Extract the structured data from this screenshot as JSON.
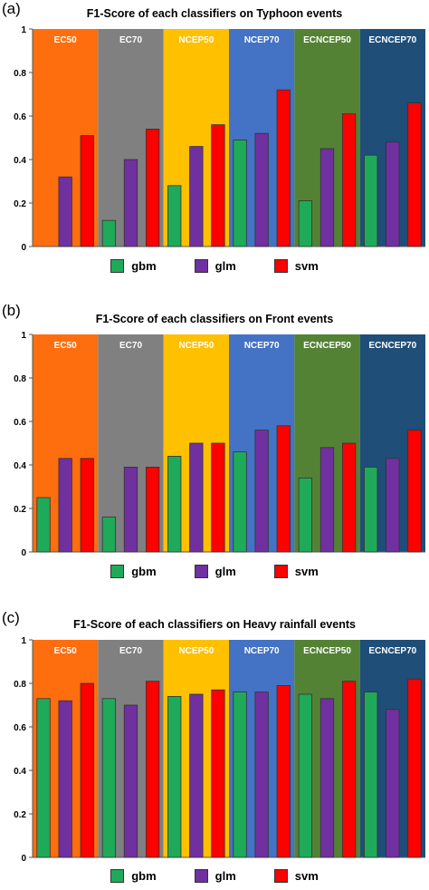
{
  "colors": {
    "gbm": "#1faa5a",
    "glm": "#7030a0",
    "svm": "#ff0000",
    "bands": [
      "#ff6e0e",
      "#808080",
      "#ffc000",
      "#4472c4",
      "#548235",
      "#1f4e79"
    ]
  },
  "chart_data": [
    {
      "type": "bar",
      "panel": "(a)",
      "title": "F1-Score of each classifiers on Typhoon events",
      "categories": [
        "EC50",
        "EC70",
        "NCEP50",
        "NCEP70",
        "ECNCEP50",
        "ECNCEP70"
      ],
      "ylim": [
        0,
        1
      ],
      "yticks": [
        "0",
        "0.2",
        "0.4",
        "0.6",
        "0.8",
        "1"
      ],
      "grid": false,
      "legend_placement": "bottom-center",
      "series": [
        {
          "name": "gbm",
          "values": [
            0.0,
            0.12,
            0.28,
            0.49,
            0.21,
            0.42
          ]
        },
        {
          "name": "glm",
          "values": [
            0.32,
            0.4,
            0.46,
            0.52,
            0.45,
            0.48
          ]
        },
        {
          "name": "svm",
          "values": [
            0.51,
            0.54,
            0.56,
            0.72,
            0.61,
            0.66
          ]
        }
      ]
    },
    {
      "type": "bar",
      "panel": "(b)",
      "title": "F1-Score of each classifiers on Front events",
      "categories": [
        "EC50",
        "EC70",
        "NCEP50",
        "NCEP70",
        "ECNCEP50",
        "ECNCEP70"
      ],
      "ylim": [
        0,
        1
      ],
      "yticks": [
        "0",
        "0.2",
        "0.4",
        "0.6",
        "0.8",
        "1"
      ],
      "grid": false,
      "legend_placement": "bottom-center",
      "series": [
        {
          "name": "gbm",
          "values": [
            0.25,
            0.16,
            0.44,
            0.46,
            0.34,
            0.39
          ]
        },
        {
          "name": "glm",
          "values": [
            0.43,
            0.39,
            0.5,
            0.56,
            0.48,
            0.43
          ]
        },
        {
          "name": "svm",
          "values": [
            0.43,
            0.39,
            0.5,
            0.58,
            0.5,
            0.56
          ]
        }
      ]
    },
    {
      "type": "bar",
      "panel": "(c)",
      "title": "F1-Score of each classifiers on Heavy rainfall events",
      "categories": [
        "EC50",
        "EC70",
        "NCEP50",
        "NCEP70",
        "ECNCEP50",
        "ECNCEP70"
      ],
      "ylim": [
        0,
        1
      ],
      "yticks": [
        "0",
        "0.2",
        "0.4",
        "0.6",
        "0.8",
        "1"
      ],
      "grid": false,
      "legend_placement": "bottom-center",
      "series": [
        {
          "name": "gbm",
          "values": [
            0.73,
            0.73,
            0.74,
            0.76,
            0.75,
            0.76
          ]
        },
        {
          "name": "glm",
          "values": [
            0.72,
            0.7,
            0.75,
            0.76,
            0.73,
            0.68
          ]
        },
        {
          "name": "svm",
          "values": [
            0.8,
            0.81,
            0.77,
            0.79,
            0.81,
            0.82
          ]
        }
      ]
    }
  ]
}
